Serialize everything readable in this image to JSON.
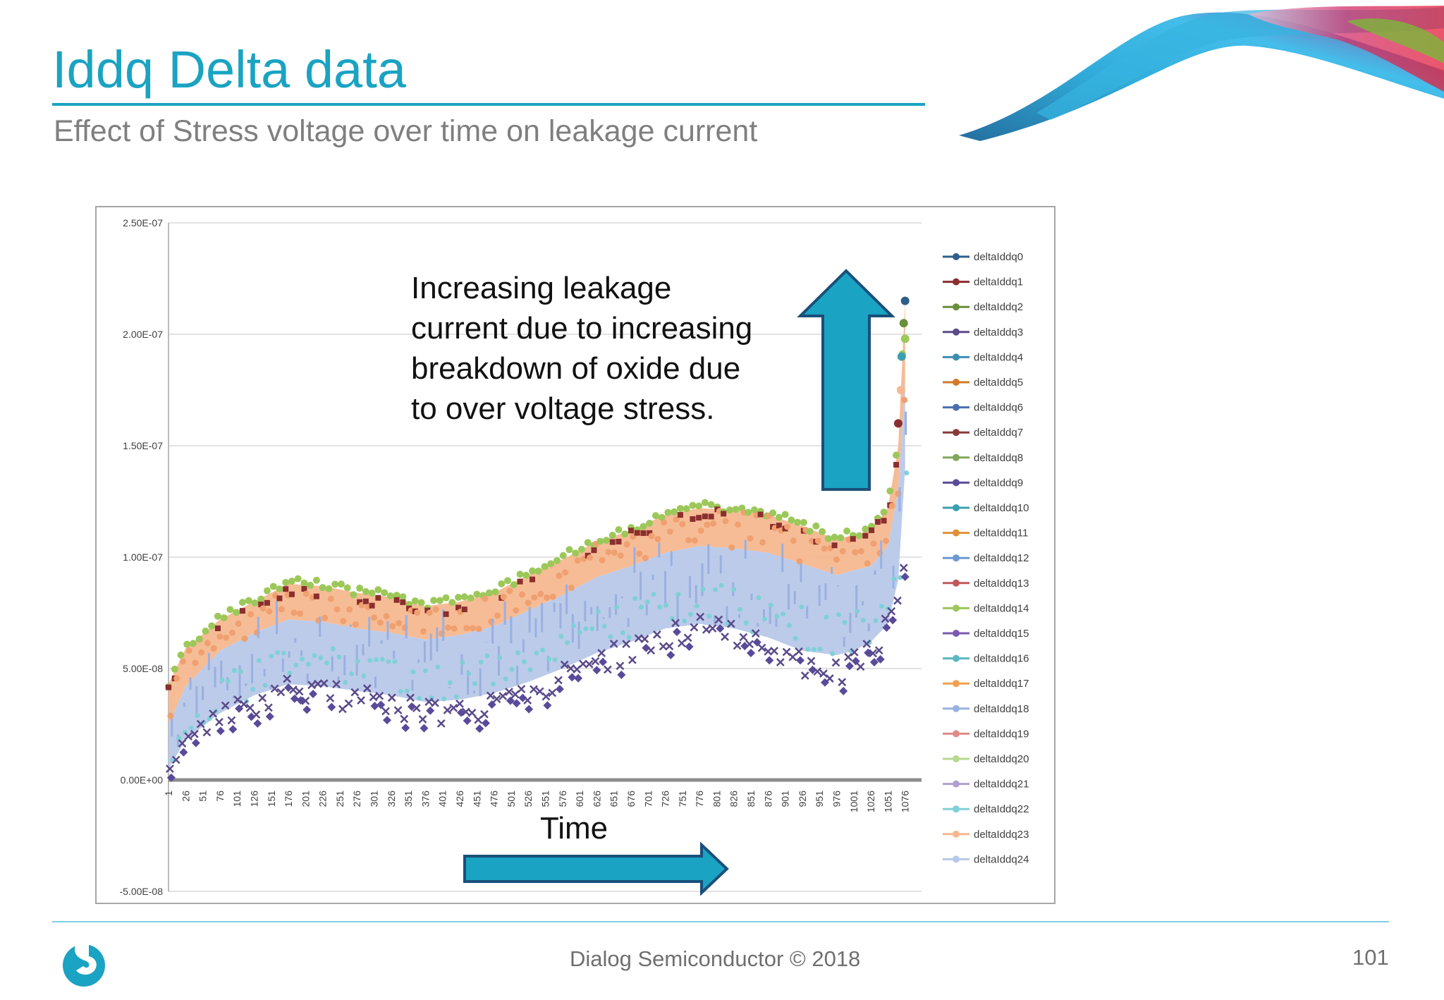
{
  "slide": {
    "title": "Iddq Delta data",
    "subtitle": "Effect of Stress voltage over time on leakage current",
    "footer": "Dialog Semiconductor © 2018",
    "page_number": "101",
    "accent_color": "#1aa3c2"
  },
  "annotations": {
    "increase_lines": [
      "Increasing leakage",
      "current due to increasing",
      "breakdown of oxide due",
      "to over voltage stress."
    ],
    "time_label": "Time",
    "arrow_color": "#1aa3c2"
  },
  "chart_data": {
    "type": "line",
    "title": "",
    "xlabel": "",
    "ylabel": "",
    "ylim": [
      -5e-08,
      2.5e-07
    ],
    "yticks": [
      "2.50E-07",
      "2.00E-07",
      "1.50E-07",
      "1.00E-07",
      "5.00E-08",
      "0.00E+00",
      "-5.00E-08"
    ],
    "ytick_values": [
      2.5e-07,
      2e-07,
      1.5e-07,
      1e-07,
      5e-08,
      0,
      -5e-08
    ],
    "xlim": [
      1,
      1100
    ],
    "xticks": [
      1,
      26,
      51,
      76,
      101,
      126,
      151,
      176,
      201,
      226,
      251,
      276,
      301,
      326,
      351,
      376,
      401,
      426,
      451,
      476,
      501,
      526,
      551,
      576,
      601,
      626,
      651,
      676,
      701,
      726,
      751,
      776,
      801,
      826,
      851,
      876,
      901,
      926,
      951,
      976,
      1001,
      1026,
      1051,
      1076
    ],
    "grid": true,
    "legend_position": "right",
    "series_names": [
      "deltaIddq0",
      "deltaIddq1",
      "deltaIddq2",
      "deltaIddq3",
      "deltaIddq4",
      "deltaIddq5",
      "deltaIddq6",
      "deltaIddq7",
      "deltaIddq8",
      "deltaIddq9",
      "deltaIddq10",
      "deltaIddq11",
      "deltaIddq12",
      "deltaIddq13",
      "deltaIddq14",
      "deltaIddq15",
      "deltaIddq16",
      "deltaIddq17",
      "deltaIddq18",
      "deltaIddq19",
      "deltaIddq20",
      "deltaIddq21",
      "deltaIddq22",
      "deltaIddq23",
      "deltaIddq24"
    ],
    "series_colors": [
      "#2e5f8a",
      "#8b2e2e",
      "#6a8f3a",
      "#5a4a8a",
      "#3a8fb0",
      "#d07a2a",
      "#4a6fb0",
      "#8b3a3a",
      "#7fa85a",
      "#5a4a9a",
      "#3aa0b0",
      "#e0903a",
      "#6a9ad0",
      "#c05a5a",
      "#9cc85a",
      "#7a5ab0",
      "#5ab8c0",
      "#f0a050",
      "#9ab0e0",
      "#e08a8a",
      "#b8d890",
      "#b0a0d0",
      "#80d0d8",
      "#f6b890",
      "#b8c8e8"
    ],
    "envelope_x": [
      1,
      26,
      76,
      126,
      176,
      226,
      276,
      326,
      376,
      426,
      476,
      526,
      576,
      626,
      676,
      726,
      776,
      826,
      876,
      926,
      976,
      1001,
      1026,
      1051,
      1066,
      1076
    ],
    "upper": [
      4.3e-08,
      5.9e-08,
      7.2e-08,
      8e-08,
      8.8e-08,
      8.7e-08,
      8.4e-08,
      8.2e-08,
      7.8e-08,
      8e-08,
      8.4e-08,
      9.2e-08,
      9.9e-08,
      1.07e-07,
      1.12e-07,
      1.19e-07,
      1.22e-07,
      1.21e-07,
      1.19e-07,
      1.14e-07,
      1.08e-07,
      1.1e-07,
      1.12e-07,
      1.22e-07,
      1.5e-07,
      2.15e-07
    ],
    "salmon_lower": [
      2.5e-08,
      4.2e-08,
      5.8e-08,
      6.6e-08,
      7.2e-08,
      7.1e-08,
      6.8e-08,
      6.6e-08,
      6.3e-08,
      6.5e-08,
      6.9e-08,
      7.6e-08,
      8.3e-08,
      9.1e-08,
      9.6e-08,
      1.02e-07,
      1.05e-07,
      1.04e-07,
      1.02e-07,
      9.7e-08,
      9.2e-08,
      9.4e-08,
      9.6e-08,
      1.05e-07,
      1.3e-07,
      1.8e-07
    ],
    "blue_lower": [
      5e-09,
      1.8e-08,
      3e-08,
      3.8e-08,
      4.3e-08,
      4.2e-08,
      4e-08,
      3.8e-08,
      3.5e-08,
      3.6e-08,
      3.9e-08,
      4.4e-08,
      5e-08,
      5.7e-08,
      6.2e-08,
      6.8e-08,
      7e-08,
      6.8e-08,
      6.4e-08,
      5.8e-08,
      5.6e-08,
      5.8e-08,
      6.2e-08,
      7e-08,
      9e-08,
      1.4e-07
    ],
    "purple_low": [
      2e-09,
      1.5e-08,
      2.8e-08,
      3.5e-08,
      4e-08,
      3.8e-08,
      3.6e-08,
      3.3e-08,
      3e-08,
      3.1e-08,
      3.4e-08,
      3.9e-08,
      4.6e-08,
      5.3e-08,
      5.9e-08,
      6.5e-08,
      6.8e-08,
      6.6e-08,
      6.2e-08,
      5.2e-08,
      4.8e-08,
      5.2e-08,
      5.8e-08,
      7e-08,
      8.5e-08,
      1.1e-07
    ]
  }
}
